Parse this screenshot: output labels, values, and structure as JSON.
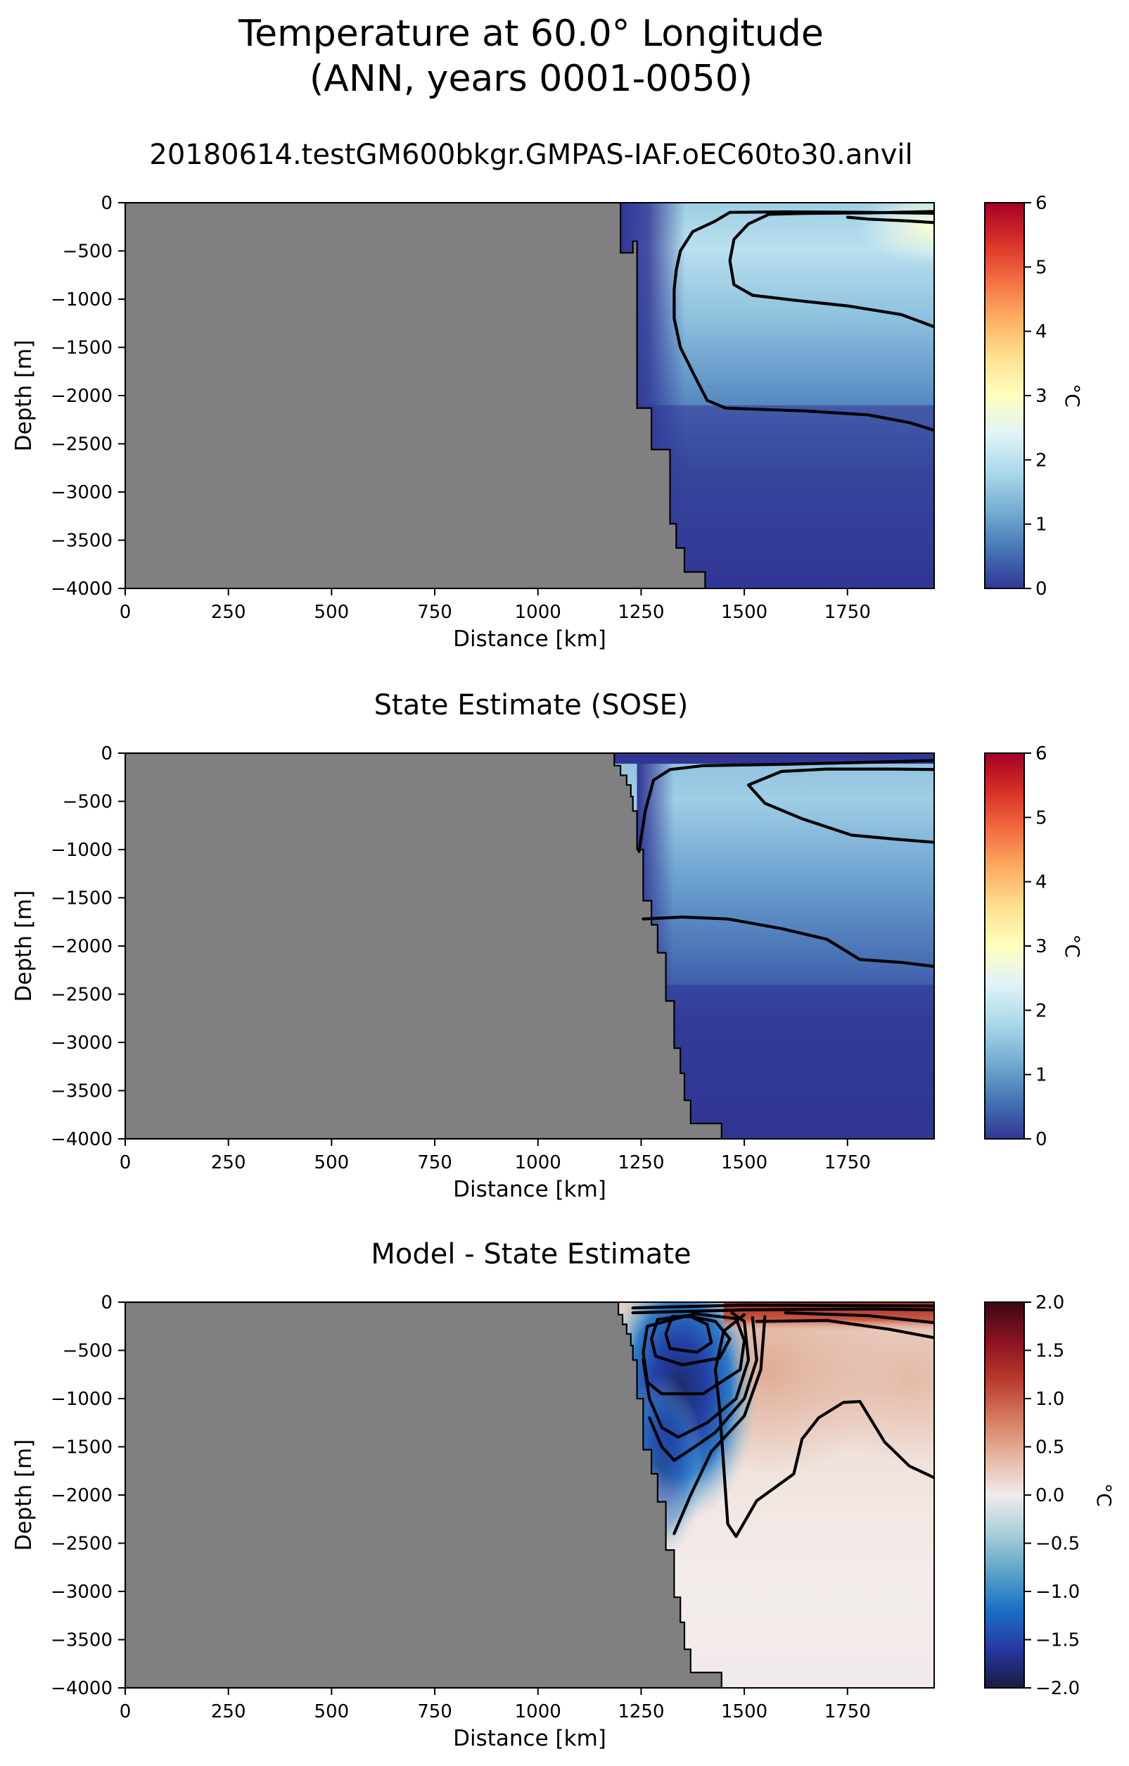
{
  "figure": {
    "title_line1": "Temperature at 60.0° Longitude",
    "title_line2": "(ANN, years 0001-0050)"
  },
  "colors": {
    "land": "#808080",
    "rdylbu_r": [
      "#313695",
      "#4575b4",
      "#74add1",
      "#abd9e9",
      "#e0f3f8",
      "#ffffbf",
      "#fee090",
      "#fdae61",
      "#f46d43",
      "#d73027",
      "#a50026"
    ],
    "balance": [
      "#181c43",
      "#2638a0",
      "#1a6fc6",
      "#5ba3c7",
      "#a9cfd8",
      "#f1ecec",
      "#e6b6a0",
      "#d57a5d",
      "#b9392e",
      "#8a1221",
      "#3c0911"
    ]
  },
  "chart_data": [
    {
      "type": "heatmap",
      "title": "20180614.testGM600bkgr.GMPAS-IAF.oEC60to30.anvil",
      "xlabel": "Distance [km]",
      "ylabel": "Depth [m]",
      "xlim": [
        0,
        1960
      ],
      "ylim": [
        -4000,
        0
      ],
      "xticks": [
        "0",
        "250",
        "500",
        "750",
        "1000",
        "1250",
        "1500",
        "1750"
      ],
      "yticks": [
        "0",
        "−500",
        "−1000",
        "−1500",
        "−2000",
        "−2500",
        "−3000",
        "−3500",
        "−4000"
      ],
      "colorbar": {
        "label": "°C",
        "vmin": 0,
        "vmax": 6,
        "ticks": [
          "0",
          "1",
          "2",
          "3",
          "4",
          "5",
          "6"
        ]
      },
      "bathymetry": [
        [
          1200,
          0
        ],
        [
          1200,
          -520
        ],
        [
          1230,
          -520
        ],
        [
          1230,
          -400
        ],
        [
          1240,
          -400
        ],
        [
          1240,
          -2130
        ],
        [
          1275,
          -2130
        ],
        [
          1275,
          -2560
        ],
        [
          1320,
          -2560
        ],
        [
          1320,
          -3330
        ],
        [
          1335,
          -3330
        ],
        [
          1335,
          -3580
        ],
        [
          1355,
          -3580
        ],
        [
          1355,
          -3830
        ],
        [
          1405,
          -3830
        ],
        [
          1405,
          -4000
        ]
      ],
      "contours": [
        [
          [
            1975,
            -110
          ],
          [
            1800,
            -100
          ],
          [
            1600,
            -95
          ],
          [
            1465,
            -100
          ],
          [
            1430,
            -190
          ],
          [
            1375,
            -300
          ],
          [
            1345,
            -500
          ],
          [
            1335,
            -700
          ],
          [
            1330,
            -900
          ],
          [
            1330,
            -1200
          ],
          [
            1345,
            -1500
          ],
          [
            1380,
            -1800
          ],
          [
            1410,
            -2050
          ],
          [
            1455,
            -2130
          ],
          [
            1650,
            -2160
          ],
          [
            1800,
            -2200
          ],
          [
            1900,
            -2280
          ],
          [
            1975,
            -2380
          ]
        ],
        [
          [
            1975,
            -90
          ],
          [
            1810,
            -105
          ],
          [
            1650,
            -110
          ],
          [
            1560,
            -120
          ],
          [
            1510,
            -220
          ],
          [
            1475,
            -380
          ],
          [
            1465,
            -600
          ],
          [
            1475,
            -850
          ],
          [
            1520,
            -960
          ],
          [
            1620,
            -1010
          ],
          [
            1750,
            -1070
          ],
          [
            1880,
            -1160
          ],
          [
            1975,
            -1310
          ]
        ],
        [
          [
            1750,
            -150
          ],
          [
            1800,
            -170
          ],
          [
            1900,
            -190
          ],
          [
            1975,
            -210
          ]
        ]
      ]
    },
    {
      "type": "heatmap",
      "title": "State Estimate (SOSE)",
      "xlabel": "Distance [km]",
      "ylabel": "Depth [m]",
      "xlim": [
        0,
        1960
      ],
      "ylim": [
        -4000,
        0
      ],
      "xticks": [
        "0",
        "250",
        "500",
        "750",
        "1000",
        "1250",
        "1500",
        "1750"
      ],
      "yticks": [
        "0",
        "−500",
        "−1000",
        "−1500",
        "−2000",
        "−2500",
        "−3000",
        "−3500",
        "−4000"
      ],
      "colorbar": {
        "label": "°C",
        "vmin": 0,
        "vmax": 6,
        "ticks": [
          "0",
          "1",
          "2",
          "3",
          "4",
          "5",
          "6"
        ]
      },
      "bathymetry": [
        [
          1185,
          0
        ],
        [
          1185,
          -130
        ],
        [
          1200,
          -130
        ],
        [
          1200,
          -230
        ],
        [
          1215,
          -230
        ],
        [
          1215,
          -330
        ],
        [
          1225,
          -330
        ],
        [
          1225,
          -450
        ],
        [
          1230,
          -450
        ],
        [
          1230,
          -600
        ],
        [
          1240,
          -600
        ],
        [
          1240,
          -1000
        ],
        [
          1255,
          -1000
        ],
        [
          1255,
          -1530
        ],
        [
          1275,
          -1530
        ],
        [
          1275,
          -1780
        ],
        [
          1290,
          -1780
        ],
        [
          1290,
          -2070
        ],
        [
          1310,
          -2070
        ],
        [
          1310,
          -2570
        ],
        [
          1330,
          -2570
        ],
        [
          1330,
          -3060
        ],
        [
          1345,
          -3060
        ],
        [
          1345,
          -3320
        ],
        [
          1355,
          -3320
        ],
        [
          1355,
          -3600
        ],
        [
          1370,
          -3600
        ],
        [
          1370,
          -3840
        ],
        [
          1445,
          -3840
        ],
        [
          1445,
          -4000
        ]
      ],
      "contours": [
        [
          [
            1975,
            -75
          ],
          [
            1800,
            -95
          ],
          [
            1600,
            -115
          ],
          [
            1400,
            -130
          ],
          [
            1320,
            -170
          ],
          [
            1280,
            -280
          ],
          [
            1260,
            -600
          ],
          [
            1245,
            -1020
          ]
        ],
        [
          [
            1975,
            -170
          ],
          [
            1850,
            -165
          ],
          [
            1700,
            -165
          ],
          [
            1590,
            -190
          ],
          [
            1510,
            -330
          ],
          [
            1550,
            -520
          ],
          [
            1640,
            -680
          ],
          [
            1760,
            -850
          ],
          [
            1860,
            -890
          ],
          [
            1975,
            -930
          ]
        ],
        [
          [
            1255,
            -1720
          ],
          [
            1350,
            -1700
          ],
          [
            1460,
            -1720
          ],
          [
            1590,
            -1820
          ],
          [
            1700,
            -1930
          ],
          [
            1780,
            -2140
          ],
          [
            1880,
            -2170
          ],
          [
            1975,
            -2220
          ]
        ]
      ]
    },
    {
      "type": "heatmap",
      "title": "Model - State Estimate",
      "xlabel": "Distance [km]",
      "ylabel": "Depth [m]",
      "xlim": [
        0,
        1960
      ],
      "ylim": [
        -4000,
        0
      ],
      "xticks": [
        "0",
        "250",
        "500",
        "750",
        "1000",
        "1250",
        "1500",
        "1750"
      ],
      "yticks": [
        "0",
        "−500",
        "−1000",
        "−1500",
        "−2000",
        "−2500",
        "−3000",
        "−3500",
        "−4000"
      ],
      "colorbar": {
        "label": "°C",
        "vmin": -2,
        "vmax": 2,
        "ticks": [
          "−2.0",
          "−1.5",
          "−1.0",
          "−0.5",
          "0.0",
          "0.5",
          "1.0",
          "1.5",
          "2.0"
        ]
      },
      "bathymetry": [
        [
          1195,
          0
        ],
        [
          1195,
          -130
        ],
        [
          1205,
          -130
        ],
        [
          1205,
          -230
        ],
        [
          1215,
          -230
        ],
        [
          1215,
          -330
        ],
        [
          1225,
          -330
        ],
        [
          1225,
          -450
        ],
        [
          1230,
          -450
        ],
        [
          1230,
          -600
        ],
        [
          1240,
          -600
        ],
        [
          1240,
          -1000
        ],
        [
          1255,
          -1000
        ],
        [
          1255,
          -1530
        ],
        [
          1275,
          -1530
        ],
        [
          1275,
          -1780
        ],
        [
          1290,
          -1780
        ],
        [
          1290,
          -2070
        ],
        [
          1310,
          -2070
        ],
        [
          1310,
          -2570
        ],
        [
          1330,
          -2570
        ],
        [
          1330,
          -3060
        ],
        [
          1345,
          -3060
        ],
        [
          1345,
          -3320
        ],
        [
          1355,
          -3320
        ],
        [
          1355,
          -3600
        ],
        [
          1370,
          -3600
        ],
        [
          1370,
          -3840
        ],
        [
          1445,
          -3840
        ],
        [
          1445,
          -4000
        ]
      ],
      "contours": [
        [
          [
            1325,
            -150
          ],
          [
            1310,
            -330
          ],
          [
            1320,
            -480
          ],
          [
            1385,
            -520
          ],
          [
            1420,
            -420
          ],
          [
            1410,
            -230
          ],
          [
            1370,
            -150
          ],
          [
            1325,
            -150
          ]
        ],
        [
          [
            1290,
            -180
          ],
          [
            1275,
            -380
          ],
          [
            1285,
            -560
          ],
          [
            1350,
            -650
          ],
          [
            1440,
            -580
          ],
          [
            1465,
            -380
          ],
          [
            1430,
            -200
          ],
          [
            1360,
            -140
          ],
          [
            1290,
            -180
          ]
        ],
        [
          [
            1265,
            -250
          ],
          [
            1255,
            -520
          ],
          [
            1265,
            -830
          ],
          [
            1300,
            -950
          ],
          [
            1400,
            -950
          ],
          [
            1490,
            -700
          ],
          [
            1500,
            -400
          ],
          [
            1480,
            -170
          ],
          [
            1380,
            -120
          ],
          [
            1265,
            -250
          ]
        ],
        [
          [
            1255,
            -600
          ],
          [
            1270,
            -1000
          ],
          [
            1300,
            -1300
          ],
          [
            1340,
            -1400
          ],
          [
            1410,
            -1250
          ],
          [
            1480,
            -1000
          ],
          [
            1510,
            -600
          ],
          [
            1500,
            -200
          ],
          [
            1470,
            -110
          ]
        ],
        [
          [
            1270,
            -1200
          ],
          [
            1300,
            -1500
          ],
          [
            1330,
            -1640
          ],
          [
            1380,
            -1500
          ],
          [
            1430,
            -1350
          ],
          [
            1500,
            -1000
          ],
          [
            1530,
            -600
          ],
          [
            1520,
            -160
          ]
        ],
        [
          [
            1330,
            -2400
          ],
          [
            1370,
            -2000
          ],
          [
            1420,
            -1550
          ],
          [
            1500,
            -1180
          ],
          [
            1540,
            -700
          ],
          [
            1550,
            -150
          ]
        ],
        [
          [
            1975,
            -1850
          ],
          [
            1900,
            -1700
          ],
          [
            1840,
            -1450
          ],
          [
            1780,
            -1030
          ],
          [
            1740,
            -1040
          ],
          [
            1680,
            -1200
          ],
          [
            1640,
            -1420
          ],
          [
            1620,
            -1780
          ],
          [
            1530,
            -2060
          ],
          [
            1480,
            -2430
          ],
          [
            1460,
            -2300
          ],
          [
            1450,
            -1700
          ],
          [
            1440,
            -1100
          ],
          [
            1430,
            -700
          ],
          [
            1450,
            -300
          ],
          [
            1500,
            -130
          ]
        ],
        [
          [
            1530,
            -200
          ],
          [
            1700,
            -190
          ],
          [
            1850,
            -280
          ],
          [
            1975,
            -380
          ]
        ],
        [
          [
            1600,
            -110
          ],
          [
            1800,
            -140
          ],
          [
            1975,
            -220
          ]
        ],
        [
          [
            1230,
            -110
          ],
          [
            1500,
            -80
          ],
          [
            1800,
            -70
          ],
          [
            1975,
            -80
          ]
        ],
        [
          [
            1230,
            -60
          ],
          [
            1500,
            -30
          ],
          [
            1975,
            -40
          ]
        ]
      ]
    }
  ]
}
